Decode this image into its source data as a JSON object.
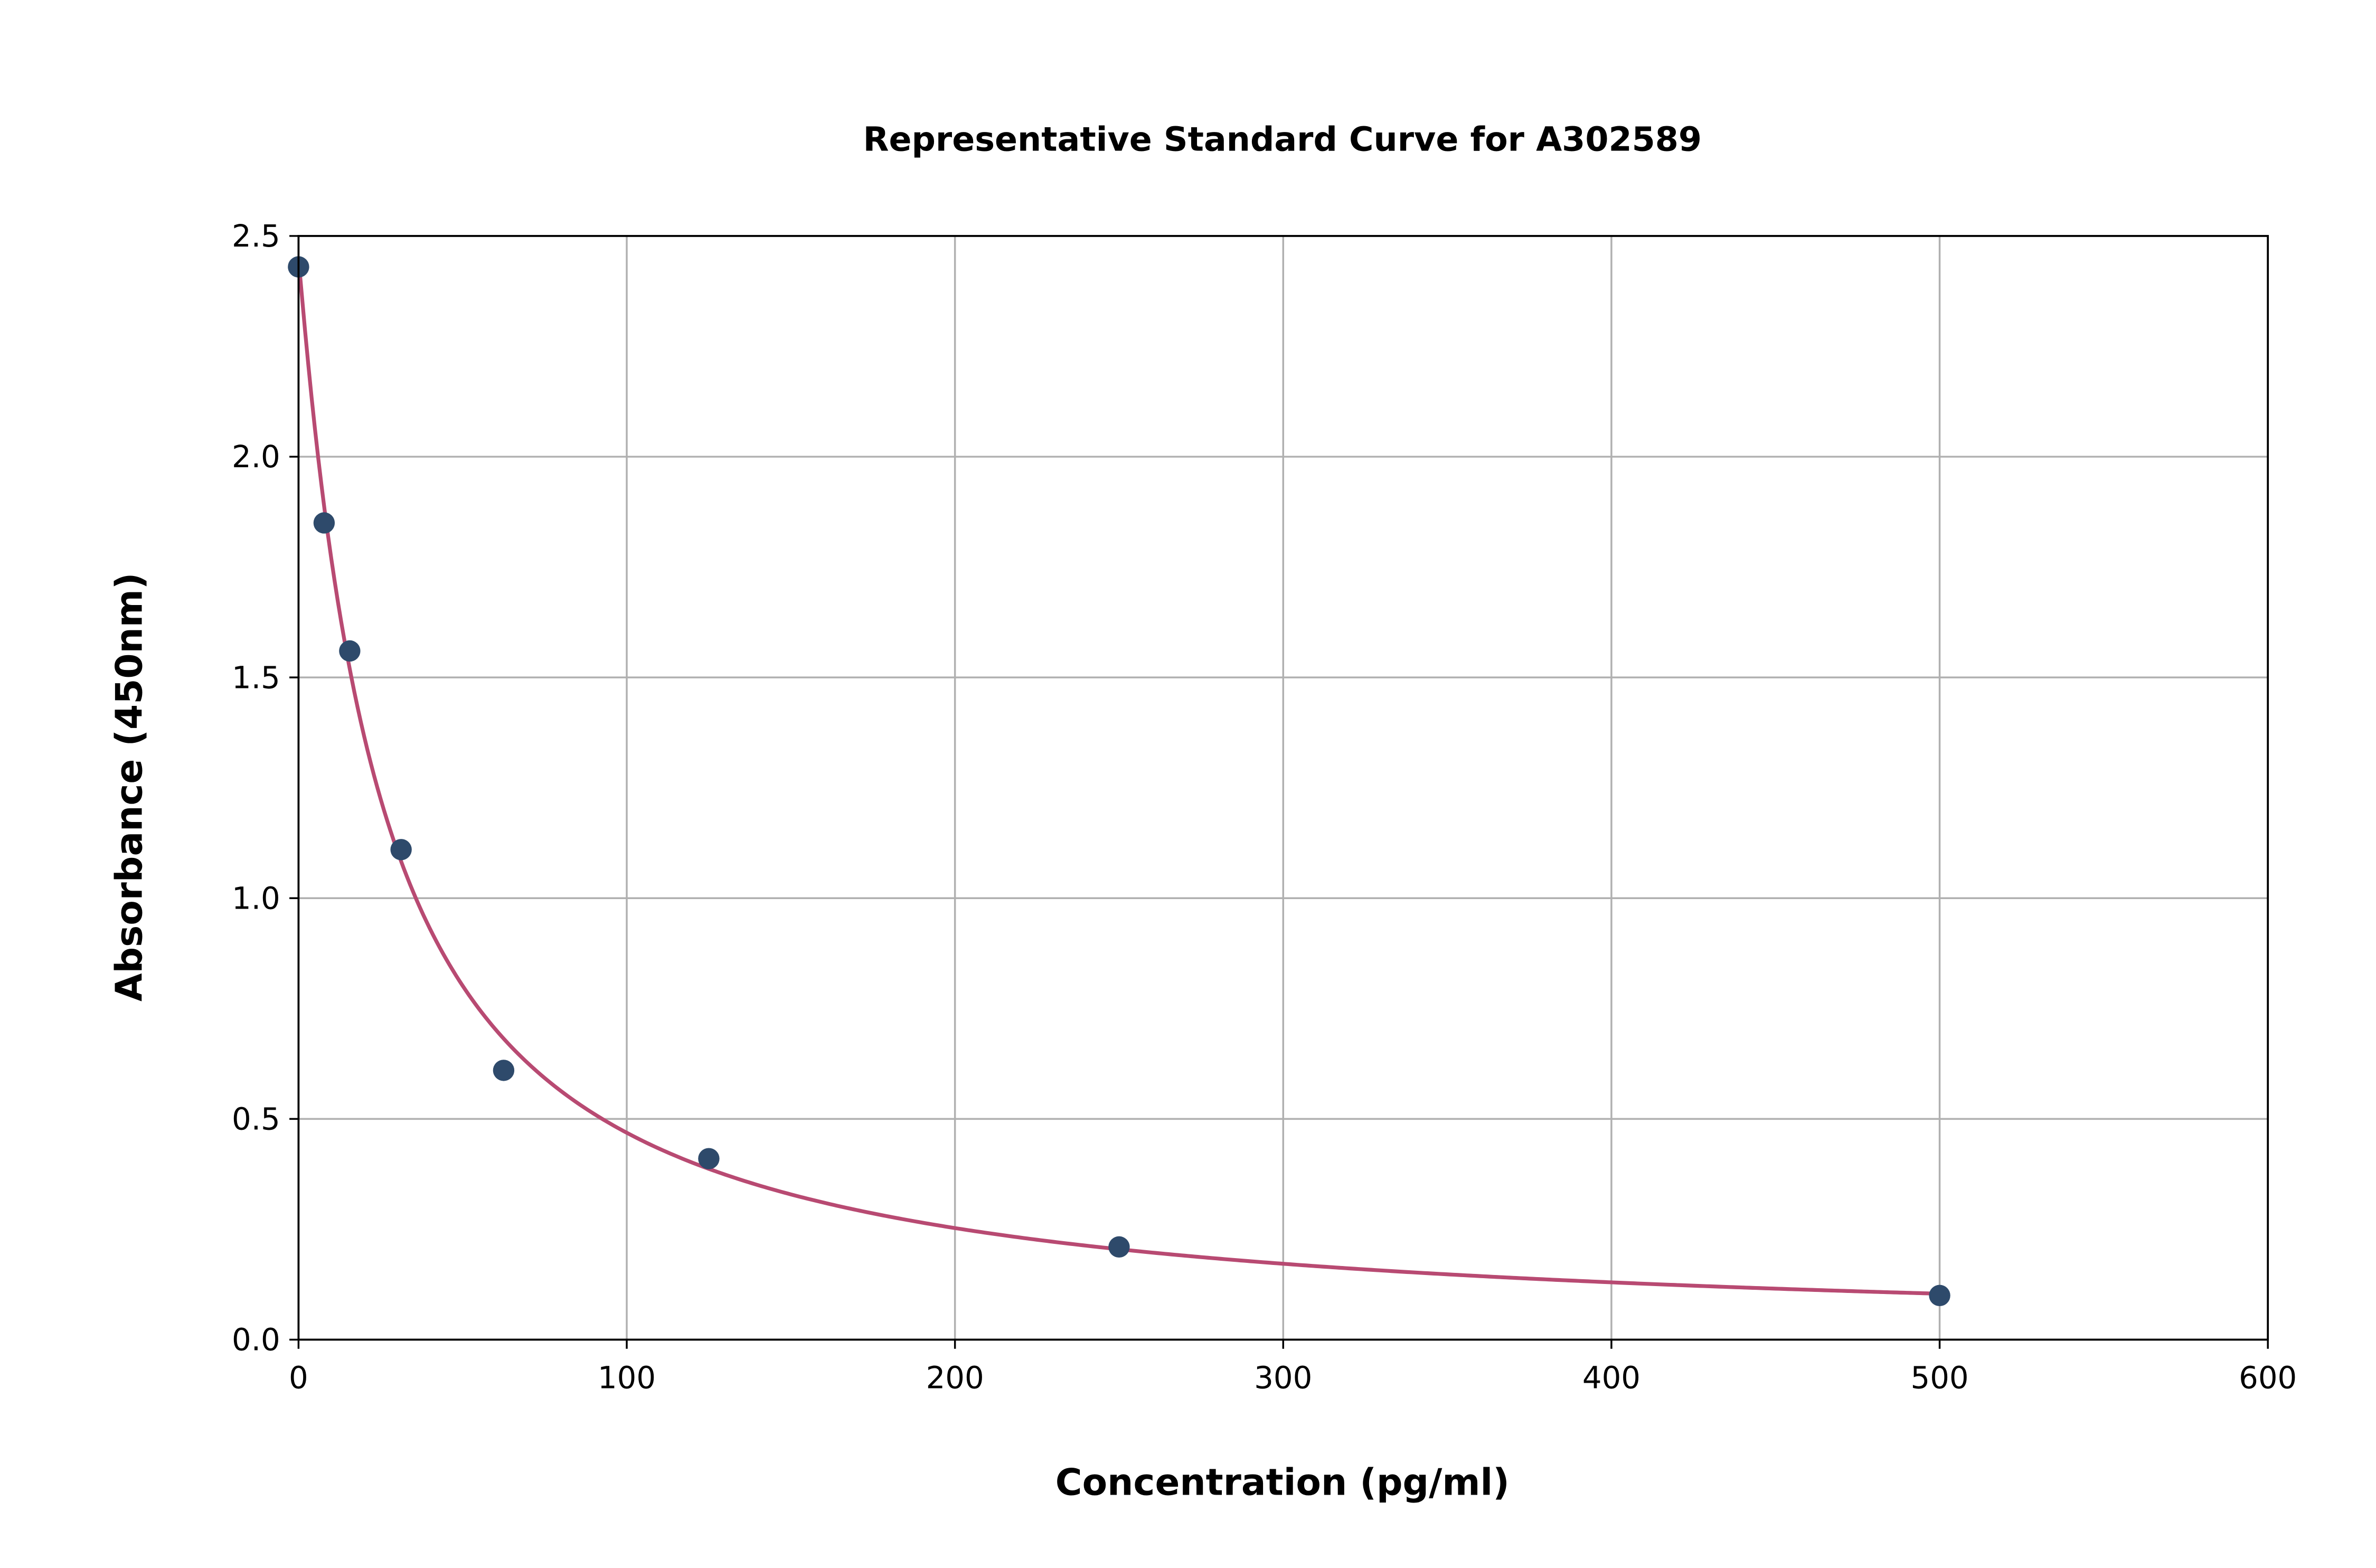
{
  "chart_data": {
    "type": "scatter",
    "title": "Representative Standard Curve for A302589",
    "xlabel": "Concentration (pg/ml)",
    "ylabel": "Absorbance (450nm)",
    "xlim": [
      0,
      600
    ],
    "ylim": [
      0,
      2.5
    ],
    "xticks": [
      "0",
      "100",
      "200",
      "300",
      "400",
      "500",
      "600"
    ],
    "yticks": [
      "0.0",
      "0.5",
      "1.0",
      "1.5",
      "2.0",
      "2.5"
    ],
    "grid": true,
    "x": [
      0,
      7.8,
      15.6,
      31.25,
      62.5,
      125,
      250,
      500
    ],
    "y": [
      2.43,
      1.85,
      1.56,
      1.11,
      0.61,
      0.41,
      0.21,
      0.1
    ],
    "fit_curve": true,
    "colors": {
      "points": "#2e4a6b",
      "curve": "#b84a72"
    }
  }
}
